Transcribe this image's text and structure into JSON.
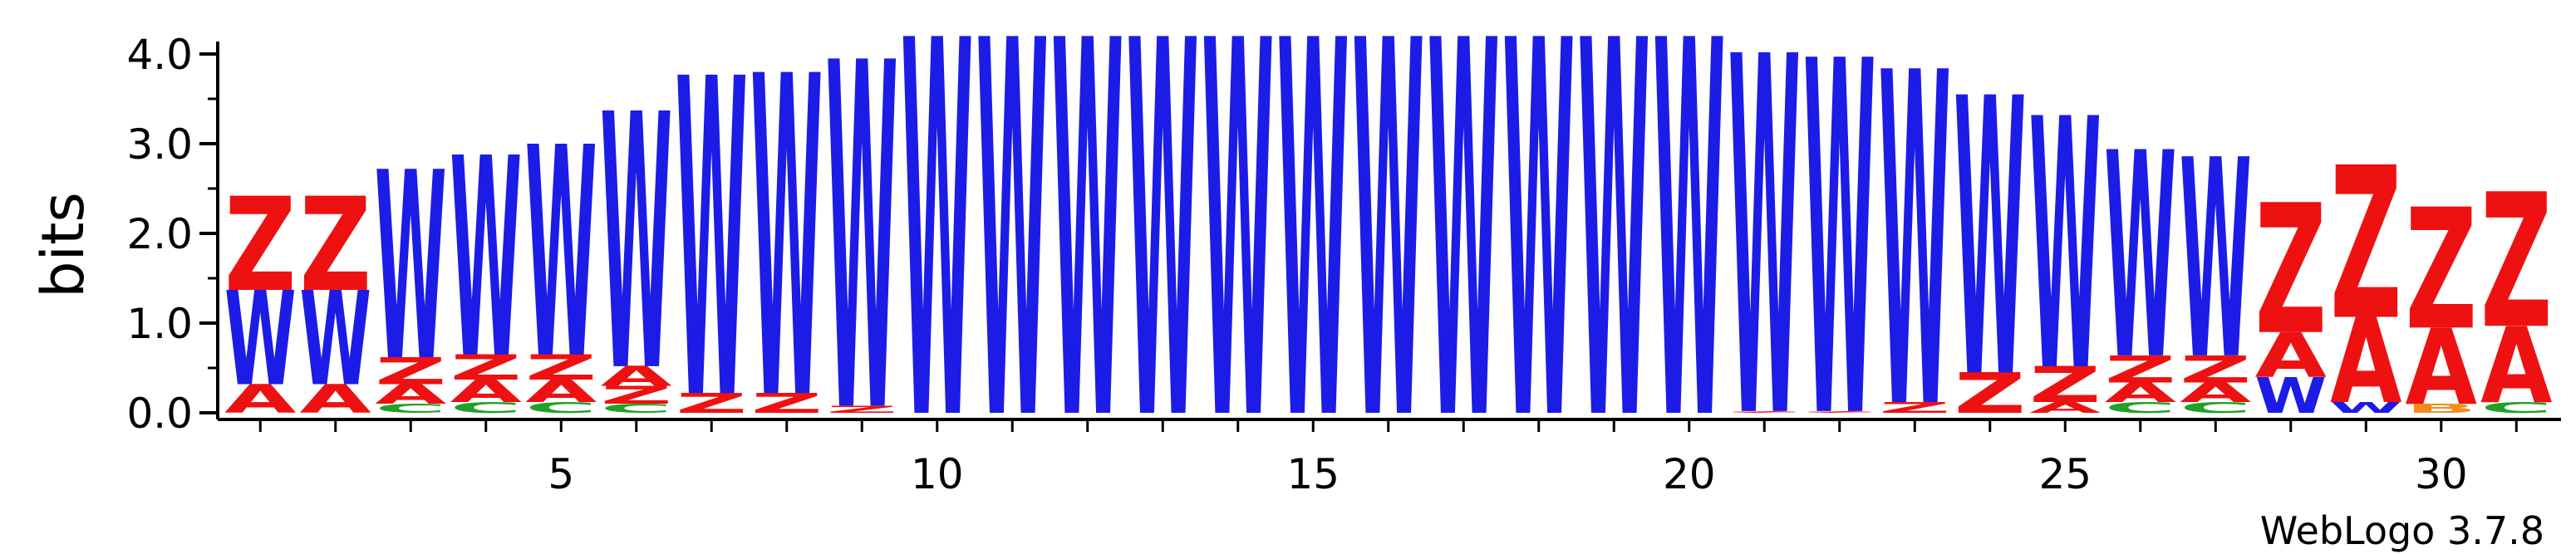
{
  "chart_data": {
    "type": "sequence-logo",
    "ylabel": "bits",
    "ylim": [
      0,
      4.0
    ],
    "y_ticks": [
      "0.0",
      "1.0",
      "2.0",
      "3.0",
      "4.0"
    ],
    "x_ticks": [
      "5",
      "10",
      "15",
      "20",
      "25",
      "30"
    ],
    "positions": 31,
    "credit": "WebLogo 3.7.8",
    "colors": {
      "W": "#1c1ce6",
      "Z": "#ee1111",
      "A": "#ee1111",
      "C": "#22a02a",
      "B": "#f08c1c"
    },
    "columns": [
      {
        "pos": 1,
        "stack": [
          {
            "l": "A",
            "h": 0.32
          },
          {
            "l": "W",
            "h": 1.05
          },
          {
            "l": "Z",
            "h": 1.05
          }
        ]
      },
      {
        "pos": 2,
        "stack": [
          {
            "l": "A",
            "h": 0.32
          },
          {
            "l": "W",
            "h": 1.05
          },
          {
            "l": "Z",
            "h": 1.05
          }
        ]
      },
      {
        "pos": 3,
        "stack": [
          {
            "l": "C",
            "h": 0.1
          },
          {
            "l": "A",
            "h": 0.22
          },
          {
            "l": "Z",
            "h": 0.3
          },
          {
            "l": "W",
            "h": 2.1
          }
        ]
      },
      {
        "pos": 4,
        "stack": [
          {
            "l": "C",
            "h": 0.12
          },
          {
            "l": "A",
            "h": 0.25
          },
          {
            "l": "Z",
            "h": 0.28
          },
          {
            "l": "W",
            "h": 2.23
          }
        ]
      },
      {
        "pos": 5,
        "stack": [
          {
            "l": "C",
            "h": 0.12
          },
          {
            "l": "A",
            "h": 0.25
          },
          {
            "l": "Z",
            "h": 0.28
          },
          {
            "l": "W",
            "h": 2.35
          }
        ]
      },
      {
        "pos": 6,
        "stack": [
          {
            "l": "C",
            "h": 0.1
          },
          {
            "l": "Z",
            "h": 0.2
          },
          {
            "l": "A",
            "h": 0.22
          },
          {
            "l": "W",
            "h": 2.85
          }
        ]
      },
      {
        "pos": 7,
        "stack": [
          {
            "l": "Z",
            "h": 0.22
          },
          {
            "l": "W",
            "h": 3.55
          }
        ]
      },
      {
        "pos": 8,
        "stack": [
          {
            "l": "Z",
            "h": 0.22
          },
          {
            "l": "W",
            "h": 3.58
          }
        ]
      },
      {
        "pos": 9,
        "stack": [
          {
            "l": "Z",
            "h": 0.08
          },
          {
            "l": "W",
            "h": 3.87
          }
        ]
      },
      {
        "pos": 10,
        "stack": [
          {
            "l": "W",
            "h": 4.2
          }
        ]
      },
      {
        "pos": 11,
        "stack": [
          {
            "l": "W",
            "h": 4.2
          }
        ]
      },
      {
        "pos": 12,
        "stack": [
          {
            "l": "W",
            "h": 4.2
          }
        ]
      },
      {
        "pos": 13,
        "stack": [
          {
            "l": "W",
            "h": 4.2
          }
        ]
      },
      {
        "pos": 14,
        "stack": [
          {
            "l": "W",
            "h": 4.2
          }
        ]
      },
      {
        "pos": 15,
        "stack": [
          {
            "l": "W",
            "h": 4.2
          }
        ]
      },
      {
        "pos": 16,
        "stack": [
          {
            "l": "W",
            "h": 4.2
          }
        ]
      },
      {
        "pos": 17,
        "stack": [
          {
            "l": "W",
            "h": 4.2
          }
        ]
      },
      {
        "pos": 18,
        "stack": [
          {
            "l": "W",
            "h": 4.2
          }
        ]
      },
      {
        "pos": 19,
        "stack": [
          {
            "l": "W",
            "h": 4.2
          }
        ]
      },
      {
        "pos": 20,
        "stack": [
          {
            "l": "W",
            "h": 4.2
          }
        ]
      },
      {
        "pos": 21,
        "stack": [
          {
            "l": "Z",
            "h": 0.02
          },
          {
            "l": "W",
            "h": 4.0
          }
        ]
      },
      {
        "pos": 22,
        "stack": [
          {
            "l": "Z",
            "h": 0.02
          },
          {
            "l": "W",
            "h": 3.95
          }
        ]
      },
      {
        "pos": 23,
        "stack": [
          {
            "l": "Z",
            "h": 0.12
          },
          {
            "l": "W",
            "h": 3.72
          }
        ]
      },
      {
        "pos": 24,
        "stack": [
          {
            "l": "Z",
            "h": 0.45
          },
          {
            "l": "W",
            "h": 3.1
          }
        ]
      },
      {
        "pos": 25,
        "stack": [
          {
            "l": "A",
            "h": 0.12
          },
          {
            "l": "Z",
            "h": 0.4
          },
          {
            "l": "W",
            "h": 2.8
          }
        ]
      },
      {
        "pos": 26,
        "stack": [
          {
            "l": "C",
            "h": 0.12
          },
          {
            "l": "A",
            "h": 0.22
          },
          {
            "l": "Z",
            "h": 0.3
          },
          {
            "l": "W",
            "h": 2.3
          }
        ]
      },
      {
        "pos": 27,
        "stack": [
          {
            "l": "C",
            "h": 0.12
          },
          {
            "l": "A",
            "h": 0.22
          },
          {
            "l": "Z",
            "h": 0.3
          },
          {
            "l": "W",
            "h": 2.22
          }
        ]
      },
      {
        "pos": 28,
        "stack": [
          {
            "l": "W",
            "h": 0.4
          },
          {
            "l": "A",
            "h": 0.5
          },
          {
            "l": "Z",
            "h": 1.45
          }
        ]
      },
      {
        "pos": 29,
        "stack": [
          {
            "l": "W",
            "h": 0.12
          },
          {
            "l": "A",
            "h": 0.95
          },
          {
            "l": "Z",
            "h": 1.7
          }
        ]
      },
      {
        "pos": 30,
        "stack": [
          {
            "l": "B",
            "h": 0.1
          },
          {
            "l": "A",
            "h": 0.85
          },
          {
            "l": "Z",
            "h": 1.35
          }
        ]
      },
      {
        "pos": 31,
        "stack": [
          {
            "l": "C",
            "h": 0.12
          },
          {
            "l": "A",
            "h": 0.85
          },
          {
            "l": "Z",
            "h": 1.5
          }
        ]
      }
    ]
  }
}
